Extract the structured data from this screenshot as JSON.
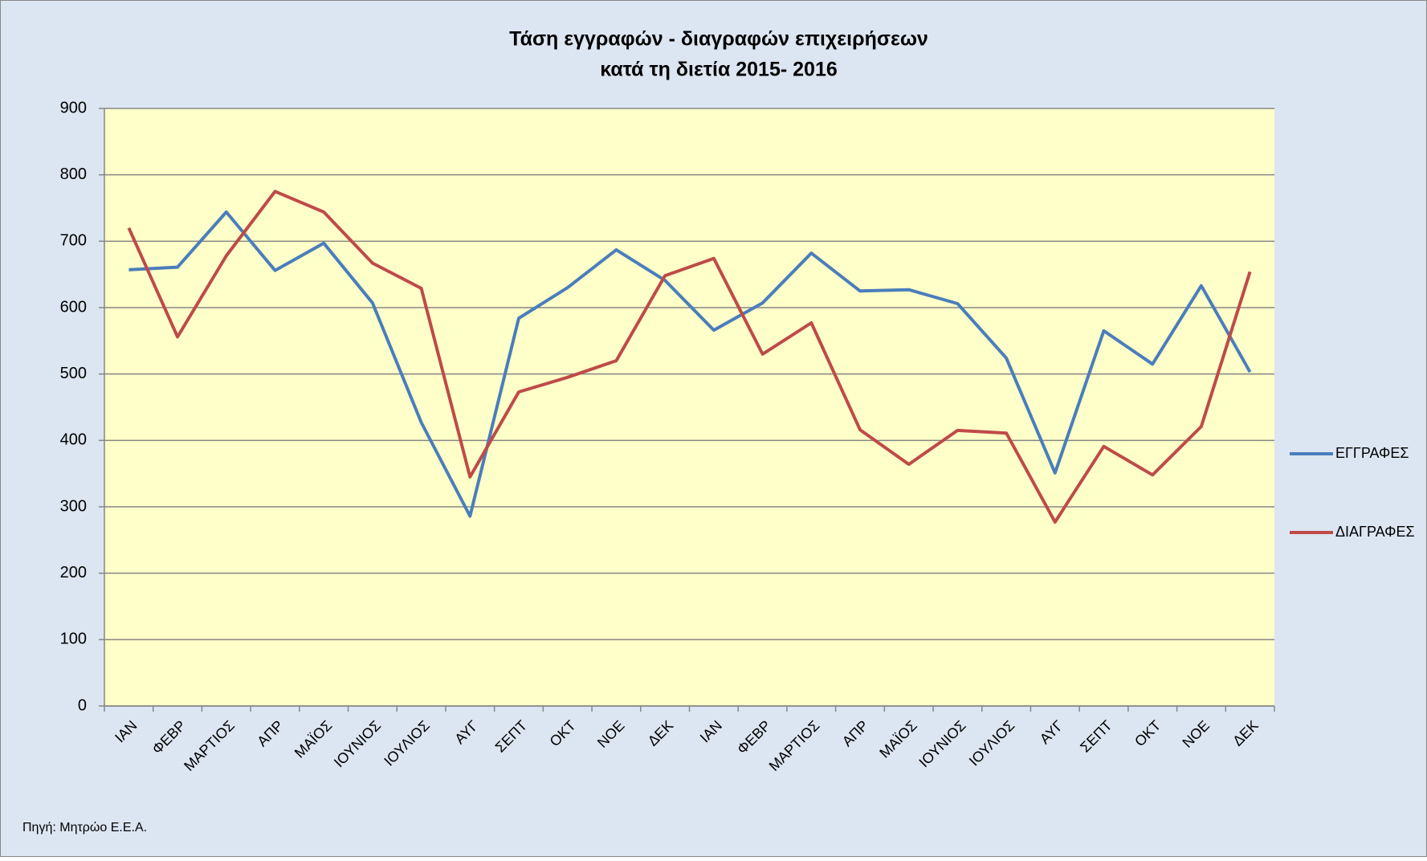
{
  "chart_data": {
    "type": "line",
    "title": [
      "Τάση εγγραφών - διαγραφών επιχειρήσεων",
      "κατά τη διετία 2015- 2016"
    ],
    "source": "Πηγή: Μητρώο Ε.Ε.Α.",
    "categories": [
      "ΙΑΝ",
      "ΦΕΒΡ",
      "ΜΑΡΤΙΟΣ",
      "ΑΠΡ",
      "ΜΑΪΟΣ",
      "ΙΟΥΝΙΟΣ",
      "ΙΟΥΛΙΟΣ",
      "ΑΥΓ",
      "ΣΕΠΤ",
      "ΟΚΤ",
      "ΝΟΕ",
      "ΔΕΚ",
      "ΙΑΝ",
      "ΦΕΒΡ",
      "ΜΑΡΤΙΟΣ",
      "ΑΠΡ",
      "ΜΑΪΟΣ",
      "ΙΟΥΝΙΟΣ",
      "ΙΟΥΛΙΟΣ",
      "ΑΥΓ",
      "ΣΕΠΤ",
      "ΟΚΤ",
      "ΝΟΕ",
      "ΔΕΚ"
    ],
    "series": [
      {
        "name": "ΕΓΓΡΑΦΕΣ",
        "color": "#4a7ebb",
        "values": [
          657,
          661,
          744,
          656,
          697,
          607,
          427,
          286,
          584,
          630,
          687,
          641,
          566,
          607,
          682,
          625,
          627,
          606,
          524,
          351,
          565,
          515,
          633,
          503
        ]
      },
      {
        "name": "ΔΙΑΓΡΑΦΕΣ",
        "color": "#be4b48",
        "values": [
          720,
          556,
          678,
          775,
          744,
          667,
          629,
          345,
          473,
          495,
          520,
          648,
          674,
          530,
          577,
          416,
          364,
          415,
          411,
          277,
          391,
          348,
          421,
          654
        ]
      }
    ],
    "ylim": [
      0,
      900
    ],
    "yticks": [
      0,
      100,
      200,
      300,
      400,
      500,
      600,
      700,
      800,
      900
    ],
    "grid": true,
    "legend": "right"
  }
}
